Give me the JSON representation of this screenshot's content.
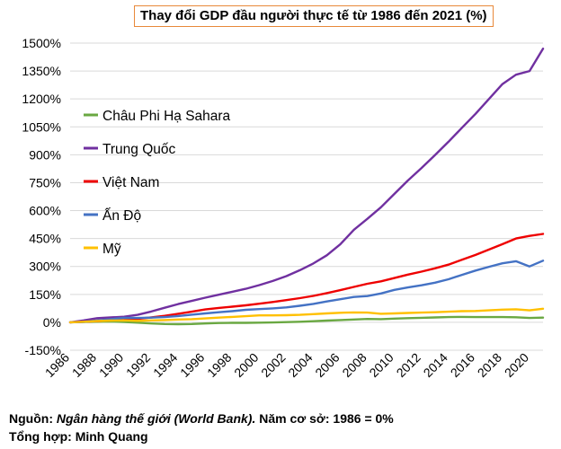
{
  "chart_data": {
    "type": "line",
    "title": "Thay đổi GDP đầu người thực tế từ 1986 đến 2021 (%)",
    "xlabel": "",
    "ylabel": "",
    "ylim": [
      -150,
      1500
    ],
    "yticks": [
      -150,
      0,
      150,
      300,
      450,
      600,
      750,
      900,
      1050,
      1200,
      1350,
      1500
    ],
    "ytick_labels": [
      "-150%",
      "0%",
      "150%",
      "300%",
      "450%",
      "600%",
      "750%",
      "900%",
      "1050%",
      "1200%",
      "1350%",
      "1500%"
    ],
    "xtick_labels": [
      "1986",
      "1988",
      "1990",
      "1992",
      "1994",
      "1996",
      "1998",
      "2000",
      "2002",
      "2004",
      "2006",
      "2008",
      "2010",
      "2012",
      "2014",
      "2016",
      "2018",
      "2020"
    ],
    "x": [
      1986,
      1987,
      1988,
      1989,
      1990,
      1991,
      1992,
      1993,
      1994,
      1995,
      1996,
      1997,
      1998,
      1999,
      2000,
      2001,
      2002,
      2003,
      2004,
      2005,
      2006,
      2007,
      2008,
      2009,
      2010,
      2011,
      2012,
      2013,
      2014,
      2015,
      2016,
      2017,
      2018,
      2019,
      2020,
      2021
    ],
    "series": [
      {
        "name": "Châu Phi Hạ Sahara",
        "color": "#6aa842",
        "values": [
          0,
          2,
          3,
          4,
          2,
          -2,
          -6,
          -9,
          -10,
          -9,
          -6,
          -4,
          -3,
          -3,
          -2,
          -1,
          1,
          3,
          6,
          9,
          12,
          15,
          18,
          17,
          20,
          22,
          24,
          26,
          28,
          29,
          28,
          28,
          28,
          27,
          23,
          25
        ]
      },
      {
        "name": "Trung Quốc",
        "color": "#7030a0",
        "values": [
          0,
          10,
          22,
          26,
          30,
          40,
          58,
          78,
          98,
          115,
          132,
          148,
          164,
          180,
          200,
          222,
          248,
          280,
          316,
          360,
          420,
          497,
          556,
          618,
          690,
          762,
          828,
          898,
          970,
          1045,
          1120,
          1200,
          1280,
          1330,
          1350,
          1470
        ]
      },
      {
        "name": "Việt Nam",
        "color": "#ee0000",
        "values": [
          0,
          3,
          6,
          10,
          13,
          19,
          26,
          35,
          46,
          57,
          69,
          77,
          84,
          91,
          100,
          109,
          119,
          130,
          142,
          157,
          173,
          190,
          207,
          220,
          238,
          256,
          272,
          290,
          310,
          336,
          362,
          391,
          420,
          450,
          464,
          475
        ]
      },
      {
        "name": "Ấn Độ",
        "color": "#4472c4",
        "values": [
          0,
          2,
          10,
          17,
          24,
          23,
          25,
          28,
          34,
          41,
          48,
          54,
          60,
          67,
          71,
          75,
          80,
          89,
          99,
          112,
          124,
          136,
          141,
          155,
          174,
          187,
          199,
          213,
          231,
          255,
          278,
          298,
          317,
          328,
          300,
          331
        ]
      },
      {
        "name": "Mỹ",
        "color": "#ffc000",
        "values": [
          0,
          3,
          7,
          9,
          10,
          8,
          10,
          12,
          15,
          17,
          21,
          25,
          29,
          33,
          37,
          37,
          38,
          40,
          44,
          48,
          51,
          53,
          52,
          46,
          48,
          50,
          52,
          54,
          57,
          60,
          61,
          64,
          68,
          70,
          64,
          73
        ]
      }
    ]
  },
  "footer": {
    "source_label": "Nguồn: ",
    "source_name": "Ngân hàng thế giới (World Bank).",
    "base_note": " Năm cơ sở: 1986 = 0%",
    "compiled": "Tổng hợp: Minh Quang"
  }
}
